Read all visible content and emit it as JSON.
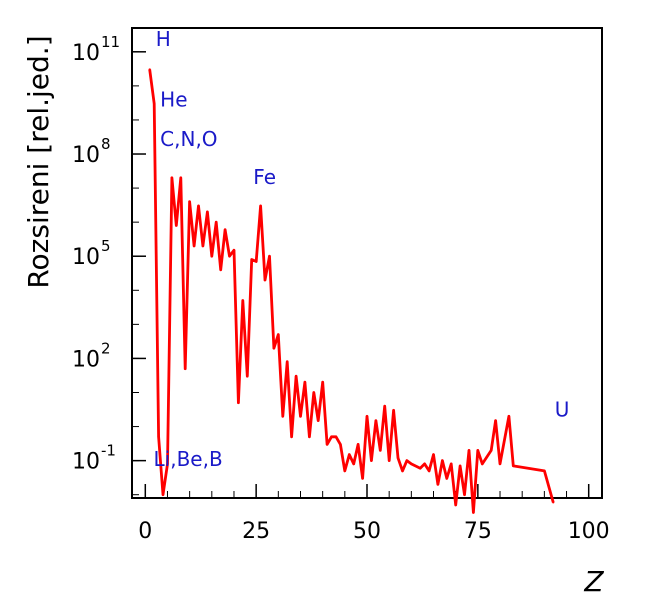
{
  "chart_data": {
    "type": "line",
    "title": "",
    "xlabel": "Z",
    "ylabel": "Rozsireni [rel.jed.]",
    "xlim": [
      -3,
      103
    ],
    "ylim": [
      0.008,
      500000000000
    ],
    "yscale": "log",
    "grid": false,
    "line_color": "#ff0000",
    "annotation_color": "#1a1ac8",
    "x_ticks": [
      {
        "value": 0,
        "label": "0"
      },
      {
        "value": 25,
        "label": "25"
      },
      {
        "value": 50,
        "label": "50"
      },
      {
        "value": 75,
        "label": "75"
      },
      {
        "value": 100,
        "label": "100"
      }
    ],
    "y_ticks": [
      {
        "value": 0.1,
        "base": "10",
        "exp": "-1"
      },
      {
        "value": 100,
        "base": "10",
        "exp": "2"
      },
      {
        "value": 100000,
        "base": "10",
        "exp": "5"
      },
      {
        "value": 100000000,
        "base": "10",
        "exp": "8"
      },
      {
        "value": 100000000000,
        "base": "10",
        "exp": "11"
      }
    ],
    "annotations": [
      {
        "text": "H",
        "x": 1,
        "y": 150000000000
      },
      {
        "text": "He",
        "x": 2,
        "y": 2500000000
      },
      {
        "text": "C,N,O",
        "x": 2,
        "y": 170000000
      },
      {
        "text": "Fe",
        "x": 23,
        "y": 13000000
      },
      {
        "text": "U",
        "x": 91,
        "y": 2
      },
      {
        "text": "Li,Be,B",
        "x": 0.5,
        "y": 0.07
      }
    ],
    "series": [
      {
        "x": [
          1,
          2,
          3,
          4,
          5,
          6,
          7,
          8,
          9,
          10,
          11,
          12,
          13,
          14,
          15,
          16,
          17,
          18,
          19,
          20,
          21,
          22,
          23,
          24,
          25,
          26,
          27,
          28,
          29,
          30,
          31,
          32,
          33,
          34,
          35,
          36,
          37,
          38,
          39,
          40,
          41,
          42,
          43,
          44,
          45,
          46,
          47,
          48,
          49,
          50,
          51,
          52,
          53,
          54,
          55,
          56,
          57,
          58,
          59,
          60,
          62,
          63,
          64,
          65,
          66,
          67,
          68,
          69,
          70,
          71,
          72,
          73,
          74,
          75,
          76,
          78,
          79,
          80,
          82,
          83,
          90,
          92
        ],
        "y": [
          30000000000,
          3000000000,
          0.5,
          0.01,
          0.08,
          20000000,
          800000,
          20000000,
          50,
          4000000,
          200000,
          3000000,
          200000,
          2000000,
          100000,
          1000000,
          40000,
          600000,
          100000,
          150000,
          5,
          5000,
          30,
          80000,
          70000,
          3000000,
          20000,
          100000,
          200,
          500,
          2,
          80,
          0.5,
          30,
          2,
          20,
          0.5,
          10,
          1.5,
          20,
          0.3,
          0.5,
          0.5,
          0.3,
          0.05,
          0.15,
          0.08,
          0.3,
          0.03,
          2,
          0.1,
          1.5,
          0.2,
          4,
          0.1,
          3,
          0.12,
          0.05,
          0.1,
          0.08,
          0.06,
          0.08,
          0.05,
          0.15,
          0.02,
          0.1,
          0.03,
          0.08,
          0.005,
          0.07,
          0.01,
          0.2,
          0.003,
          0.2,
          0.08,
          0.2,
          1.5,
          0.08,
          2,
          0.07,
          0.05,
          0.006
        ]
      }
    ]
  }
}
